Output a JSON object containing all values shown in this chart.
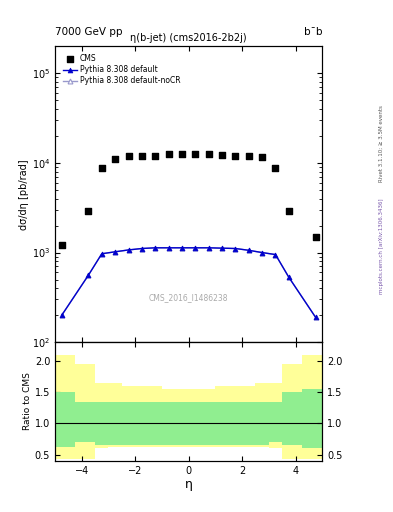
{
  "title_left": "7000 GeV pp",
  "title_right": "b¯b",
  "plot_title": "η(b-jet) (cms2016-2b2j)",
  "ylabel_main": "dσ/dη [pb/rad]",
  "ylabel_ratio": "Ratio to CMS",
  "xlabel": "η",
  "watermark": "CMS_2016_I1486238",
  "right_label_top": "Rivet 3.1.10; ≥ 3.5M events",
  "right_label_bot": "mcplots.cern.ch [arXiv:1306.3436]",
  "cms_x": [
    -4.75,
    -3.75,
    -3.25,
    -2.75,
    -2.25,
    -1.75,
    -1.25,
    -0.75,
    -0.25,
    0.25,
    0.75,
    1.25,
    1.75,
    2.25,
    2.75,
    3.25,
    3.75,
    4.75
  ],
  "cms_y": [
    1200,
    2900,
    8800,
    11000,
    12000,
    12000,
    12000,
    12700,
    12500,
    12700,
    12500,
    12200,
    12000,
    12000,
    11500,
    8700,
    2900,
    1500
  ],
  "pythia_x": [
    -4.75,
    -3.75,
    -3.25,
    -2.75,
    -2.25,
    -1.75,
    -1.25,
    -0.75,
    -0.25,
    0.25,
    0.75,
    1.25,
    1.75,
    2.25,
    2.75,
    3.25,
    3.75,
    4.75
  ],
  "pythia_y": [
    200,
    560,
    970,
    1020,
    1070,
    1110,
    1130,
    1130,
    1130,
    1130,
    1130,
    1120,
    1110,
    1060,
    1000,
    950,
    530,
    190
  ],
  "pythia_nocr_x": [
    -4.75,
    -3.75,
    -3.25,
    -2.75,
    -2.25,
    -1.75,
    -1.25,
    -0.75,
    -0.25,
    0.25,
    0.75,
    1.25,
    1.75,
    2.25,
    2.75,
    3.25,
    3.75,
    4.75
  ],
  "pythia_nocr_y": [
    200,
    560,
    970,
    1020,
    1070,
    1110,
    1130,
    1130,
    1130,
    1130,
    1130,
    1120,
    1110,
    1060,
    1000,
    950,
    530,
    190
  ],
  "xlim": [
    -5.0,
    5.0
  ],
  "ylim_main": [
    100,
    200000
  ],
  "ylim_ratio": [
    0.4,
    2.3
  ],
  "ratio_yticks": [
    0.5,
    1.0,
    1.5,
    2.0
  ],
  "bin_centers": [
    -4.75,
    -3.75,
    -3.25,
    -2.75,
    -2.25,
    -1.75,
    -1.25,
    -0.75,
    -0.25,
    0.25,
    0.75,
    1.25,
    1.75,
    2.25,
    2.75,
    3.25,
    3.75,
    4.75
  ],
  "green_top": [
    1.5,
    1.35,
    1.35,
    1.35,
    1.35,
    1.35,
    1.35,
    1.35,
    1.35,
    1.35,
    1.35,
    1.35,
    1.35,
    1.35,
    1.35,
    1.35,
    1.5,
    1.55
  ],
  "green_bot": [
    0.62,
    0.7,
    0.65,
    0.65,
    0.65,
    0.65,
    0.65,
    0.65,
    0.65,
    0.65,
    0.65,
    0.65,
    0.65,
    0.65,
    0.65,
    0.7,
    0.65,
    0.6
  ],
  "yellow_top": [
    2.1,
    1.95,
    1.65,
    1.65,
    1.6,
    1.6,
    1.6,
    1.55,
    1.55,
    1.55,
    1.55,
    1.6,
    1.6,
    1.6,
    1.65,
    1.65,
    1.95,
    2.1
  ],
  "yellow_bot": [
    0.43,
    0.43,
    0.6,
    0.62,
    0.62,
    0.62,
    0.62,
    0.62,
    0.62,
    0.62,
    0.62,
    0.62,
    0.62,
    0.62,
    0.62,
    0.6,
    0.43,
    0.43
  ],
  "cms_color": "black",
  "pythia_color": "#0000cc",
  "pythia_nocr_color": "#9999cc",
  "green_color": "#90ee90",
  "yellow_color": "#ffff99",
  "background_color": "white"
}
